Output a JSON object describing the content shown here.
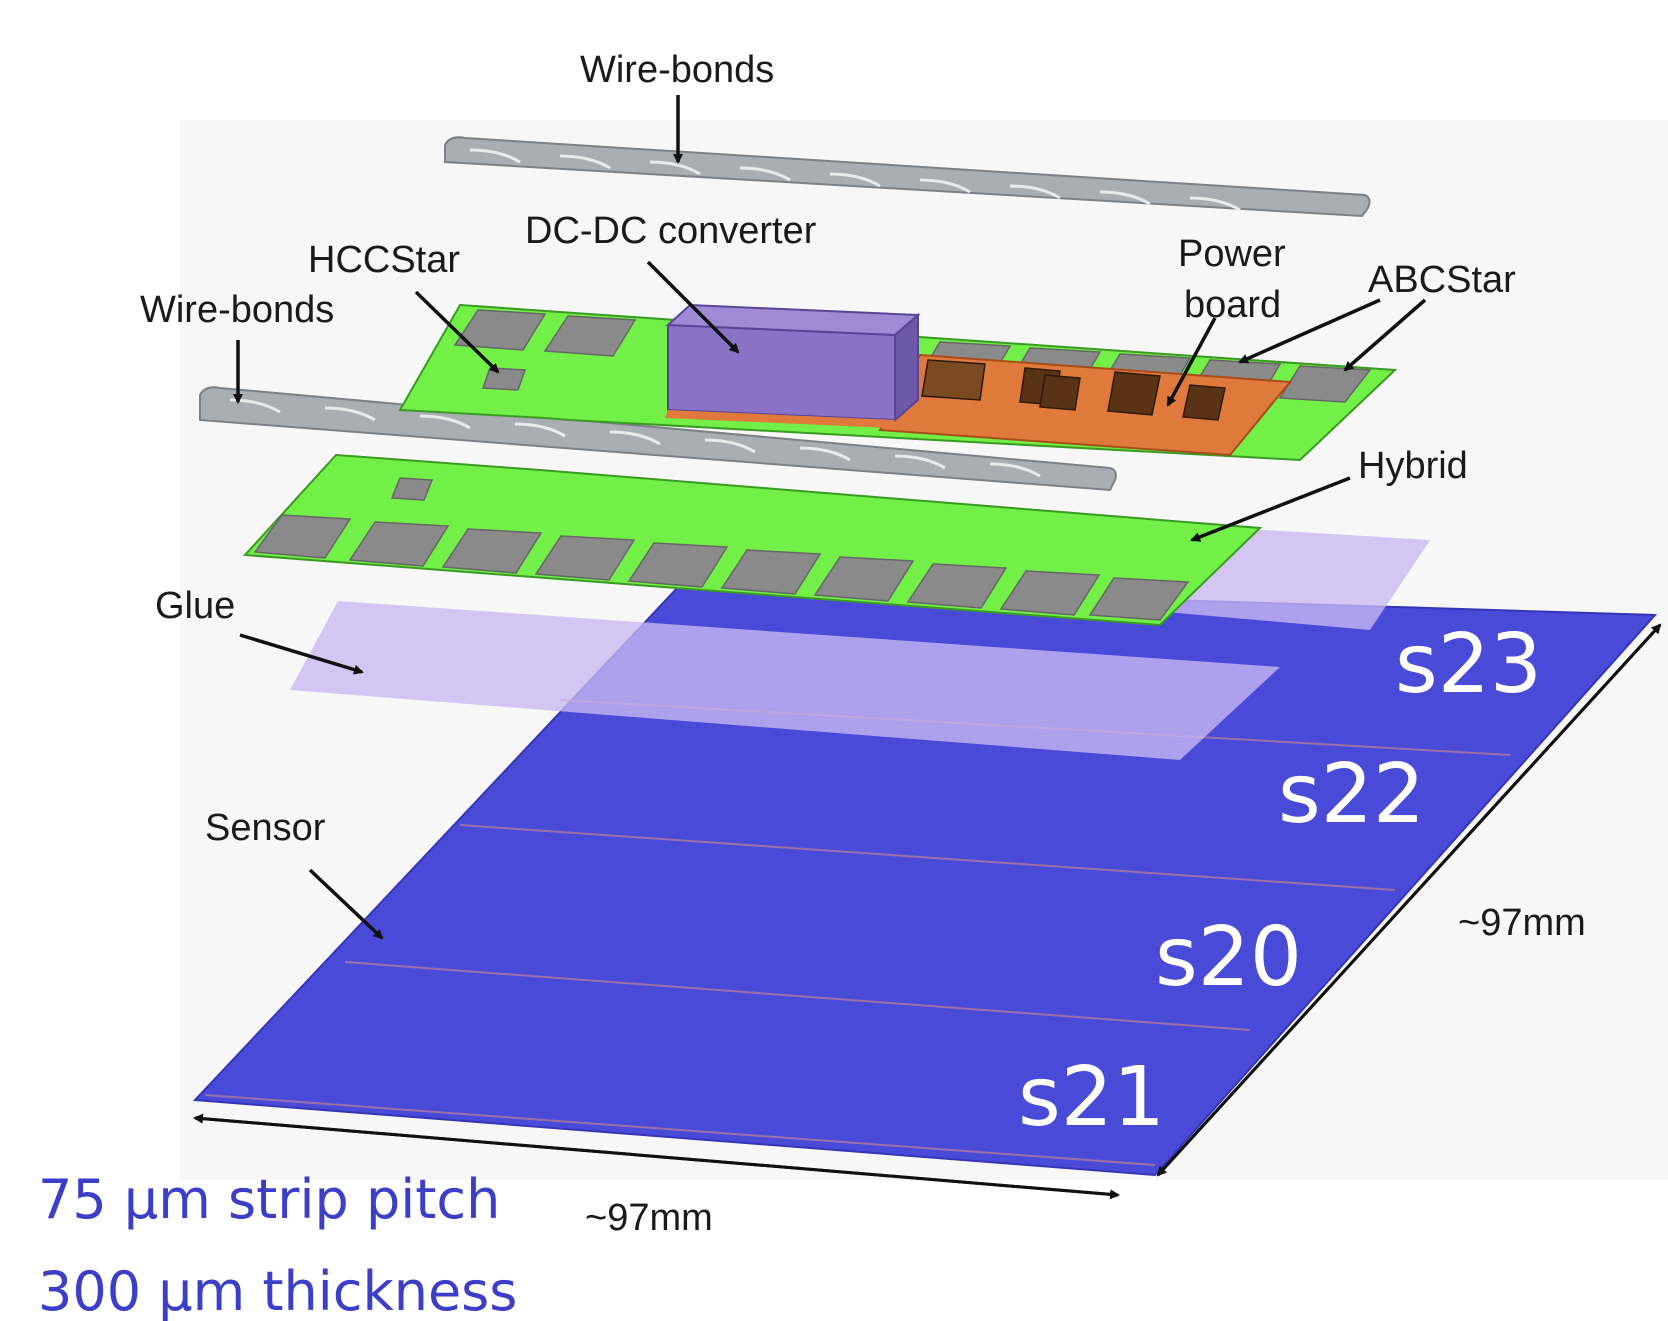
{
  "labels": {
    "wire_bonds_top": "Wire-bonds",
    "wire_bonds_left": "Wire-bonds",
    "hccstar": "HCCStar",
    "dcdc": "DC-DC converter",
    "power_board_line1": "Power",
    "power_board_line2": "board",
    "abcstar": "ABCStar",
    "hybrid": "Hybrid",
    "glue": "Glue",
    "sensor": "Sensor",
    "dim_right": "~97mm",
    "dim_bottom": "~97mm"
  },
  "strips": [
    "s23",
    "s22",
    "s20",
    "s21"
  ],
  "specs": {
    "pitch": "75 µm strip pitch",
    "thickness": "300 µm thickness"
  },
  "colors": {
    "sensor": "#4a4ad8",
    "glue": "#c9b8f2",
    "hybrid": "#72f048",
    "power_board": "#e07a3c",
    "dcdc": "#8a72c6",
    "chip": "#8a8a8a",
    "wire_bond": "#a9aeb4",
    "spec_text": "#3a3ec8"
  }
}
